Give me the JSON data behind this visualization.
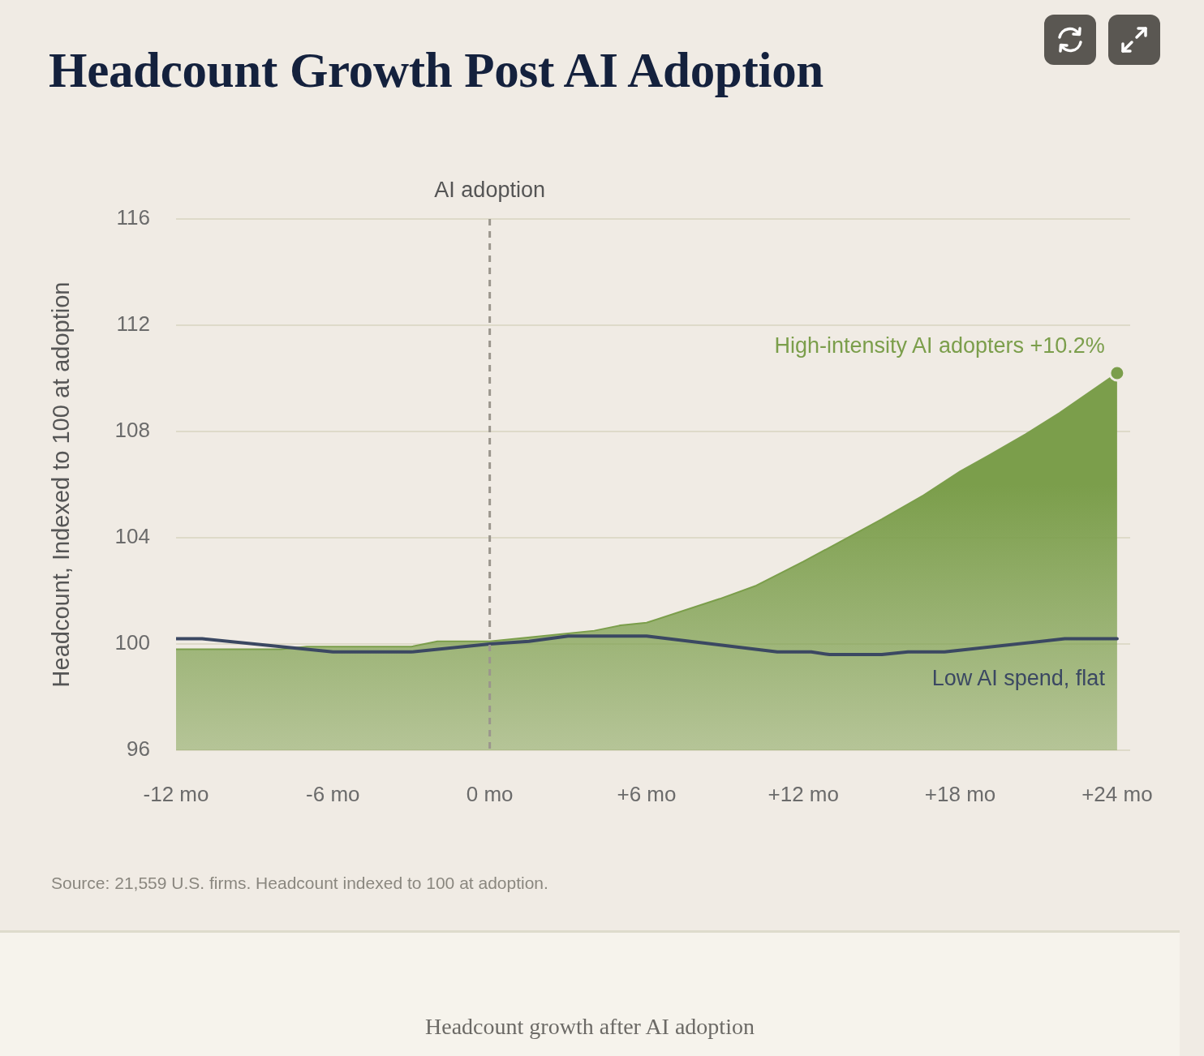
{
  "chart_data": {
    "type": "area",
    "title": "Headcount Growth Post AI Adoption",
    "ylabel": "Headcount, Indexed to 100 at adoption",
    "xlim": [
      -12,
      24.5
    ],
    "xticks": [
      {
        "value": -12,
        "label": "-12 mo"
      },
      {
        "value": -6,
        "label": "-6 mo"
      },
      {
        "value": 0,
        "label": "0 mo"
      },
      {
        "value": 6,
        "label": "+6 mo"
      },
      {
        "value": 12,
        "label": "+12 mo"
      },
      {
        "value": 18,
        "label": "+18 mo"
      },
      {
        "value": 24,
        "label": "+24 mo"
      }
    ],
    "ylim": [
      96,
      116
    ],
    "yticks": [
      96,
      100,
      104,
      108,
      112,
      116
    ],
    "grid": "y",
    "legend": false,
    "ref_lines": [
      {
        "axis": "x",
        "value": 0,
        "label": "AI adoption",
        "color": "#9b968d",
        "line_style": "dashed"
      }
    ],
    "series": [
      {
        "name": "High-intensity AI adopters +10.2%",
        "type": "area",
        "color": "#7b9e4b",
        "x": [
          -12,
          -8,
          -7,
          -3,
          -2,
          0,
          2,
          4,
          5,
          6,
          8.8,
          10.2,
          12,
          13.5,
          15,
          16.6,
          18,
          19.1,
          20.5,
          21.8,
          24
        ],
        "values": [
          99.8,
          99.8,
          99.9,
          99.9,
          100.1,
          100.1,
          100.3,
          100.5,
          100.7,
          100.8,
          101.7,
          102.2,
          103.1,
          103.9,
          104.7,
          105.6,
          106.5,
          107.1,
          107.9,
          108.7,
          110.2
        ]
      },
      {
        "name": "Low AI spend, flat",
        "type": "line",
        "color": "#3b4862",
        "x": [
          -12,
          -11,
          -6,
          -3,
          0,
          1.5,
          3,
          6,
          11,
          12.3,
          13,
          15,
          16,
          17.4,
          22,
          24
        ],
        "values": [
          100.2,
          100.2,
          99.7,
          99.7,
          100.0,
          100.1,
          100.3,
          100.3,
          99.7,
          99.7,
          99.6,
          99.6,
          99.7,
          99.7,
          100.2,
          100.2
        ]
      }
    ],
    "annotations": [
      "Source: 21,559 U.S. firms. Headcount indexed to 100 at adoption.",
      "Headcount growth after AI adoption"
    ]
  }
}
